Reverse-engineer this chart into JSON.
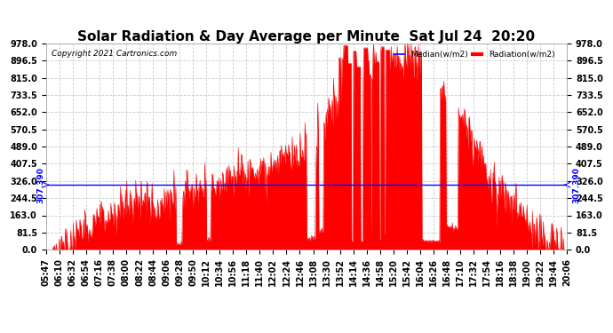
{
  "title": "Solar Radiation & Day Average per Minute  Sat Jul 24  20:20",
  "copyright": "Copyright 2021 Cartronics.com",
  "legend_median": "Median(w/m2)",
  "legend_radiation": "Radiation(w/m2)",
  "median_value": 307.39,
  "ymin": 0.0,
  "ymax": 978.0,
  "yticks": [
    0.0,
    81.5,
    163.0,
    244.5,
    326.0,
    407.5,
    489.0,
    570.5,
    652.0,
    733.5,
    815.0,
    896.5,
    978.0
  ],
  "background_color": "#ffffff",
  "grid_color": "#cccccc",
  "radiation_color": "#ff0000",
  "median_color": "#0000ff",
  "title_fontsize": 11,
  "tick_fontsize": 7,
  "xtick_labels": [
    "05:47",
    "06:10",
    "06:32",
    "06:54",
    "07:16",
    "07:38",
    "08:00",
    "08:22",
    "08:44",
    "09:06",
    "09:28",
    "09:50",
    "10:12",
    "10:34",
    "10:56",
    "11:18",
    "11:40",
    "12:02",
    "12:24",
    "12:46",
    "13:08",
    "13:30",
    "13:52",
    "14:14",
    "14:36",
    "14:58",
    "15:20",
    "15:42",
    "16:04",
    "16:26",
    "16:48",
    "17:10",
    "17:32",
    "17:54",
    "18:16",
    "18:38",
    "19:00",
    "19:22",
    "19:44",
    "20:06"
  ]
}
